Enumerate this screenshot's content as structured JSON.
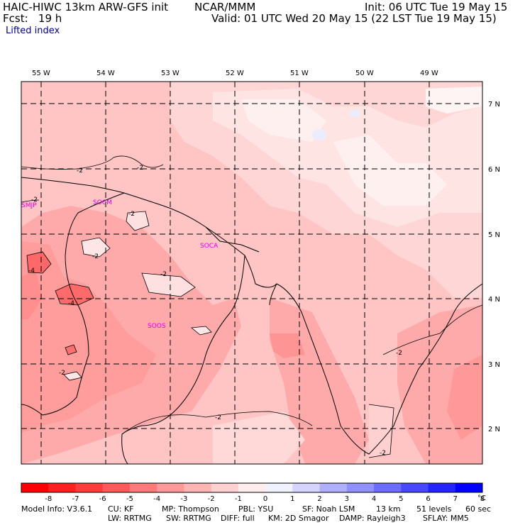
{
  "header": {
    "model": "HAIC-HIWC 13km ARW-GFS init",
    "org": "NCAR/MMM",
    "init": "Init: 06 UTC Tue 19 May 15",
    "fcst": "Fcst:   19 h",
    "valid": "Valid: 01 UTC Wed 20 May 15 (22 LST Tue 19 May 15)",
    "field": "Lifted index"
  },
  "map": {
    "lon_labels": [
      "55 W",
      "54 W",
      "53 W",
      "52 W",
      "51 W",
      "50 W",
      "49 W"
    ],
    "lat_labels": [
      "7 N",
      "6 N",
      "5 N",
      "4 N",
      "3 N",
      "2 N"
    ],
    "stations": [
      "SMJP",
      "SOCM",
      "SOCA",
      "SOOS"
    ],
    "contour_labels": [
      "-2",
      "-2",
      "-2",
      "-2",
      "-2",
      "-4",
      "-2",
      "-4",
      "-2",
      "-2",
      "-2",
      "-2"
    ]
  },
  "colorbar": {
    "levels": [
      "-8",
      "-7",
      "-6",
      "-5",
      "-4",
      "-3",
      "-2",
      "-1",
      "0",
      "1",
      "2",
      "3",
      "4",
      "5",
      "6",
      "7",
      "8"
    ],
    "unit": "°C",
    "colors": [
      "#ff0000",
      "#ff2020",
      "#ff3c3c",
      "#ff5a5a",
      "#ff7a7a",
      "#ff9898",
      "#ffb4b4",
      "#ffd0d0",
      "#ffecec",
      "#f2f2ff",
      "#d4d4ff",
      "#b0b0ff",
      "#9090ff",
      "#6c6cff",
      "#4848ff",
      "#2424ff",
      "#0000ff"
    ]
  },
  "footer": {
    "line1": [
      "Model Info: V3.6.1",
      "CU: KF",
      "MP: Thompson",
      "PBL: YSU",
      "SF: Noah LSM",
      "13 km",
      "51 levels",
      "60 sec"
    ],
    "line2": [
      "LW: RRTMG",
      "SW: RRTMG",
      "DIFF: full",
      "KM: 2D Smagor",
      "DAMP: Rayleigh3",
      "SFLAY: MM5"
    ]
  }
}
